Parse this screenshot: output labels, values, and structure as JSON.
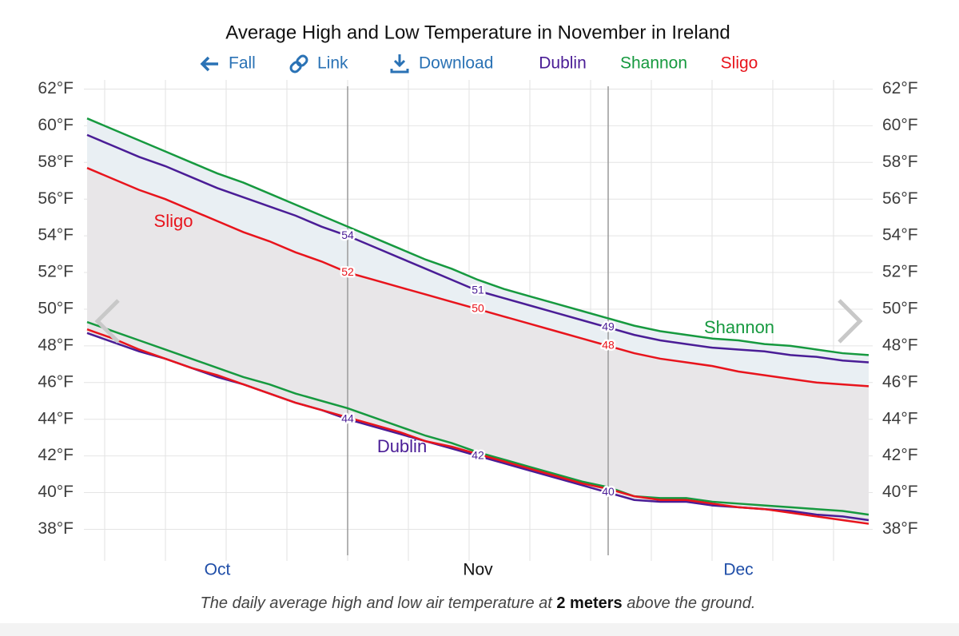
{
  "toolbar": [
    "Fall",
    "Link",
    "Download"
  ],
  "caption": [
    "The daily average high and low air temperature at ",
    "2 meters",
    " above the ground."
  ],
  "chart_data": {
    "type": "line",
    "title": "Average High and Low Temperature in November in Ireland",
    "categories": [
      null,
      null,
      null,
      null,
      null,
      "Oct",
      null,
      null,
      null,
      null,
      null,
      null,
      null,
      null,
      null,
      "Nov",
      null,
      null,
      null,
      null,
      null,
      null,
      null,
      null,
      null,
      "Dec",
      null,
      null,
      null,
      null,
      null
    ],
    "active_category_index": 15,
    "ylim": [
      36.8,
      62.5
    ],
    "yticks": [
      {
        "value": 38,
        "label": "38°F"
      },
      {
        "value": 40,
        "label": "40°F"
      },
      {
        "value": 42,
        "label": "42°F"
      },
      {
        "value": 44,
        "label": "44°F"
      },
      {
        "value": 46,
        "label": "46°F"
      },
      {
        "value": 48,
        "label": "48°F"
      },
      {
        "value": 50,
        "label": "50°F"
      },
      {
        "value": 52,
        "label": "52°F"
      },
      {
        "value": 54,
        "label": "54°F"
      },
      {
        "value": 56,
        "label": "56°F"
      },
      {
        "value": 58,
        "label": "58°F"
      },
      {
        "value": 60,
        "label": "60°F"
      },
      {
        "value": 62,
        "label": "62°F"
      }
    ],
    "y2lim": [
      36.8,
      62.5
    ],
    "y2ticks": [
      {
        "value": 38,
        "label": "38°F"
      },
      {
        "value": 40,
        "label": "40°F"
      },
      {
        "value": 42,
        "label": "42°F"
      },
      {
        "value": 44,
        "label": "44°F"
      },
      {
        "value": 46,
        "label": "46°F"
      },
      {
        "value": 48,
        "label": "48°F"
      },
      {
        "value": 50,
        "label": "50°F"
      },
      {
        "value": 52,
        "label": "52°F"
      },
      {
        "value": 54,
        "label": "54°F"
      },
      {
        "value": 56,
        "label": "56°F"
      },
      {
        "value": 58,
        "label": "58°F"
      },
      {
        "value": 60,
        "label": "60°F"
      },
      {
        "value": 62,
        "label": "62°F"
      }
    ],
    "grid": true,
    "series": [
      {
        "name": "Dublin",
        "color": "#4a1d96",
        "values": [
          59.5,
          58.9,
          58.3,
          57.8,
          57.2,
          56.6,
          56.1,
          55.6,
          55.1,
          54.5,
          54,
          53.4,
          52.8,
          52.2,
          51.6,
          51,
          50.6,
          50.2,
          49.8,
          49.4,
          49,
          48.6,
          48.3,
          48.1,
          47.9,
          47.8,
          47.7,
          47.5,
          47.4,
          47.2,
          47.1
        ],
        "value_labels": [
          null,
          null,
          null,
          null,
          null,
          null,
          null,
          null,
          null,
          null,
          "54",
          null,
          null,
          null,
          null,
          "51",
          null,
          null,
          null,
          null,
          "49",
          null,
          null,
          null,
          null,
          null,
          null,
          null,
          null,
          null,
          null
        ],
        "lows": [
          48.7,
          48.2,
          47.7,
          47.3,
          46.8,
          46.3,
          45.9,
          45.4,
          44.9,
          44.5,
          44,
          43.6,
          43.2,
          42.8,
          42.4,
          42,
          41.6,
          41.2,
          40.8,
          40.4,
          40,
          39.6,
          39.5,
          39.5,
          39.3,
          39.2,
          39.1,
          39.0,
          38.8,
          38.7,
          38.5
        ],
        "low_labels": [
          null,
          null,
          null,
          null,
          null,
          null,
          null,
          null,
          null,
          null,
          "44",
          null,
          null,
          null,
          null,
          "42",
          null,
          null,
          null,
          null,
          "40",
          null,
          null,
          null,
          null,
          null,
          null,
          null,
          null,
          null,
          null
        ]
      },
      {
        "name": "Shannon",
        "color": "#16993f",
        "values": [
          60.4,
          59.8,
          59.2,
          58.6,
          58.0,
          57.4,
          56.9,
          56.3,
          55.7,
          55.1,
          54.5,
          53.9,
          53.3,
          52.7,
          52.2,
          51.6,
          51.1,
          50.7,
          50.3,
          49.9,
          49.5,
          49.1,
          48.8,
          48.6,
          48.4,
          48.3,
          48.1,
          48.0,
          47.8,
          47.6,
          47.5
        ],
        "lows": [
          49.3,
          48.8,
          48.3,
          47.8,
          47.3,
          46.8,
          46.3,
          45.9,
          45.4,
          45.0,
          44.6,
          44.1,
          43.6,
          43.1,
          42.7,
          42.2,
          41.8,
          41.4,
          41.0,
          40.6,
          40.3,
          39.8,
          39.7,
          39.7,
          39.5,
          39.4,
          39.3,
          39.2,
          39.1,
          39.0,
          38.8
        ]
      },
      {
        "name": "Sligo",
        "color": "#e8141c",
        "values": [
          57.7,
          57.1,
          56.5,
          56.0,
          55.4,
          54.8,
          54.2,
          53.7,
          53.1,
          52.6,
          52,
          51.6,
          51.2,
          50.8,
          50.4,
          50,
          49.6,
          49.2,
          48.8,
          48.4,
          48,
          47.6,
          47.3,
          47.1,
          46.9,
          46.6,
          46.4,
          46.2,
          46.0,
          45.9,
          45.8
        ],
        "value_labels": [
          null,
          null,
          null,
          null,
          null,
          null,
          null,
          null,
          null,
          null,
          "52",
          null,
          null,
          null,
          null,
          "50",
          null,
          null,
          null,
          null,
          "48",
          null,
          null,
          null,
          null,
          null,
          null,
          null,
          null,
          null,
          null
        ],
        "lows": [
          48.9,
          48.4,
          47.8,
          47.3,
          46.8,
          46.4,
          45.9,
          45.4,
          44.9,
          44.5,
          44.1,
          43.7,
          43.3,
          42.8,
          42.5,
          42.1,
          41.7,
          41.3,
          40.9,
          40.5,
          40.2,
          39.8,
          39.6,
          39.6,
          39.4,
          39.2,
          39.1,
          38.9,
          38.7,
          38.5,
          38.3
        ]
      }
    ]
  }
}
